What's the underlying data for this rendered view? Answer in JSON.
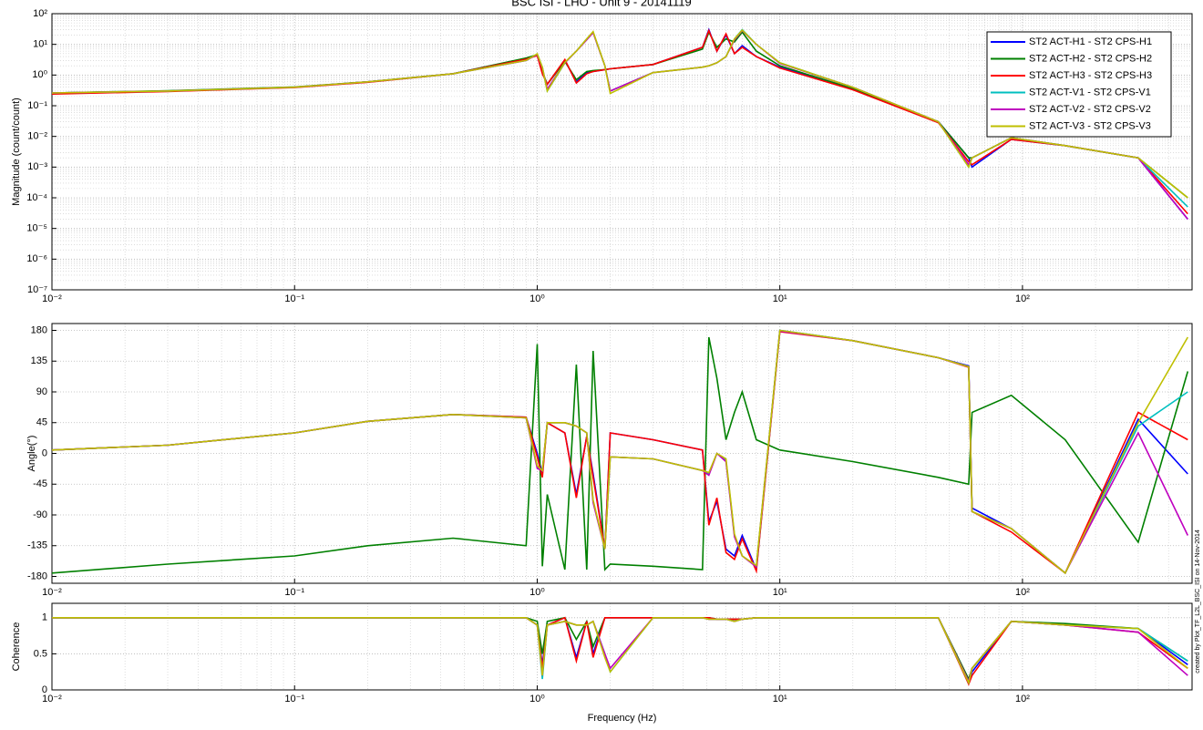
{
  "chart_data": [
    {
      "type": "line",
      "title": "BSC ISI - LHO - Unit 9 - 20141119",
      "ylabel": "Magnitude (count/count)",
      "log_x": true,
      "log_y": true,
      "grid": true,
      "minor_grid": true,
      "legend": "upper right",
      "xlim": [
        0.01,
        500
      ],
      "ylim": [
        1e-07,
        100
      ],
      "xticks": [
        {
          "value": 0.01,
          "label": "10⁻²"
        },
        {
          "value": 0.1,
          "label": "10⁻¹"
        },
        {
          "value": 1,
          "label": "10⁰"
        },
        {
          "value": 10,
          "label": "10¹"
        },
        {
          "value": 100,
          "label": "10²"
        }
      ],
      "yticks": [
        {
          "value": 1e-07,
          "label": "10⁻⁷"
        },
        {
          "value": 1e-06,
          "label": "10⁻⁶"
        },
        {
          "value": 1e-05,
          "label": "10⁻⁵"
        },
        {
          "value": 0.0001,
          "label": "10⁻⁴"
        },
        {
          "value": 0.001,
          "label": "10⁻³"
        },
        {
          "value": 0.01,
          "label": "10⁻²"
        },
        {
          "value": 0.1,
          "label": "10⁻¹"
        },
        {
          "value": 1,
          "label": "10⁰"
        },
        {
          "value": 10,
          "label": "10¹"
        },
        {
          "value": 100,
          "label": "10²"
        }
      ],
      "x": [
        0.01,
        0.03,
        0.1,
        0.2,
        0.45,
        0.9,
        1.0,
        1.05,
        1.1,
        1.3,
        1.45,
        1.6,
        1.7,
        1.9,
        2.0,
        3,
        4.8,
        5.1,
        5.5,
        6,
        6.5,
        7,
        8,
        10,
        20,
        45,
        60,
        62,
        90,
        150,
        300,
        480
      ],
      "series": [
        {
          "name": "ST2 ACT-H1 - ST2 CPS-H1",
          "color": "#0000ff",
          "values": [
            0.25,
            0.3,
            0.4,
            0.6,
            1.1,
            3.5,
            4.5,
            1.2,
            0.5,
            3,
            0.6,
            1.2,
            1.3,
            1.5,
            1.6,
            2.2,
            8,
            30,
            6,
            20,
            5,
            9,
            4,
            1.8,
            0.35,
            0.03,
            0.002,
            0.001,
            0.008,
            0.005,
            0.002,
            2e-05
          ]
        },
        {
          "name": "ST2 ACT-H2 - ST2 CPS-H2",
          "color": "#008000",
          "values": [
            0.26,
            0.31,
            0.41,
            0.6,
            1.1,
            3.6,
            4.6,
            1.3,
            0.5,
            2.8,
            0.7,
            1.3,
            1.4,
            1.5,
            1.6,
            2.2,
            7,
            25,
            8,
            15,
            12,
            25,
            6,
            2,
            0.36,
            0.03,
            0.002,
            0.002,
            0.009,
            0.005,
            0.002,
            0.0001
          ]
        },
        {
          "name": "ST2 ACT-H3 - ST2 CPS-H3",
          "color": "#ff0000",
          "values": [
            0.24,
            0.29,
            0.39,
            0.58,
            1.1,
            3.3,
            4.3,
            1.1,
            0.5,
            3.2,
            0.55,
            1.1,
            1.3,
            1.5,
            1.6,
            2.2,
            8,
            28,
            6,
            22,
            5,
            8,
            4,
            1.7,
            0.33,
            0.028,
            0.0015,
            0.0012,
            0.008,
            0.005,
            0.002,
            3e-05
          ]
        },
        {
          "name": "ST2 ACT-V1 - ST2 CPS-V1",
          "color": "#00bfbf",
          "values": [
            0.26,
            0.3,
            0.4,
            0.6,
            1.1,
            3,
            4.8,
            1.8,
            0.3,
            2.5,
            6,
            15,
            25,
            2,
            0.3,
            1.2,
            1.8,
            2,
            2.5,
            4,
            15,
            30,
            10,
            2.5,
            0.4,
            0.03,
            0.001,
            0.002,
            0.009,
            0.005,
            0.002,
            5e-05
          ]
        },
        {
          "name": "ST2 ACT-V2 - ST2 CPS-V2",
          "color": "#bf00bf",
          "values": [
            0.26,
            0.3,
            0.4,
            0.6,
            1.1,
            3,
            4.7,
            1.7,
            0.35,
            2.5,
            6,
            14,
            24,
            2,
            0.3,
            1.2,
            1.8,
            2,
            2.5,
            4,
            14,
            28,
            10,
            2.4,
            0.4,
            0.03,
            0.0012,
            0.002,
            0.009,
            0.005,
            0.002,
            2e-05
          ]
        },
        {
          "name": "ST2 ACT-V3 - ST2 CPS-V3",
          "color": "#bfbf00",
          "values": [
            0.26,
            0.3,
            0.4,
            0.6,
            1.1,
            3,
            4.9,
            1.8,
            0.3,
            2.6,
            6,
            15,
            26,
            2,
            0.25,
            1.2,
            1.8,
            2,
            2.5,
            4,
            15,
            29,
            10,
            2.5,
            0.4,
            0.03,
            0.001,
            0.002,
            0.009,
            0.005,
            0.002,
            0.0001
          ]
        }
      ]
    },
    {
      "type": "line",
      "ylabel": "Angle(°)",
      "log_x": true,
      "log_y": false,
      "grid": true,
      "minor_grid": true,
      "xlim": [
        0.01,
        500
      ],
      "ylim": [
        -190,
        190
      ],
      "xticks": [
        {
          "value": 0.01,
          "label": "10⁻²"
        },
        {
          "value": 0.1,
          "label": "10⁻¹"
        },
        {
          "value": 1,
          "label": "10⁰"
        },
        {
          "value": 10,
          "label": "10¹"
        },
        {
          "value": 100,
          "label": "10²"
        }
      ],
      "yticks": [
        -180,
        -135,
        -90,
        -45,
        0,
        45,
        90,
        135,
        180
      ],
      "x": [
        0.01,
        0.03,
        0.1,
        0.2,
        0.45,
        0.9,
        1.0,
        1.05,
        1.1,
        1.3,
        1.45,
        1.6,
        1.7,
        1.9,
        2.0,
        3,
        4.8,
        5.1,
        5.5,
        6,
        6.5,
        7,
        8,
        10,
        20,
        45,
        60,
        62,
        90,
        150,
        300,
        480
      ],
      "series": [
        {
          "color": "#0000ff",
          "values": [
            5,
            12,
            30,
            47,
            57,
            53,
            0,
            -30,
            45,
            30,
            -60,
            25,
            -30,
            -140,
            30,
            20,
            5,
            -100,
            -70,
            -140,
            -150,
            -120,
            -170,
            180,
            165,
            140,
            128,
            -80,
            -110,
            -175,
            50,
            -30
          ]
        },
        {
          "color": "#008000",
          "values": [
            -175,
            -162,
            -150,
            -135,
            -124,
            -135,
            160,
            -165,
            -60,
            -170,
            130,
            -170,
            150,
            -170,
            -162,
            -165,
            -170,
            170,
            110,
            20,
            60,
            90,
            20,
            5,
            -12,
            -35,
            -45,
            60,
            85,
            20,
            -130,
            120
          ]
        },
        {
          "color": "#ff0000",
          "values": [
            5,
            12,
            30,
            47,
            57,
            53,
            -5,
            -35,
            45,
            30,
            -65,
            25,
            -35,
            -140,
            30,
            20,
            5,
            -105,
            -65,
            -145,
            -155,
            -125,
            -172,
            178,
            165,
            140,
            126,
            -85,
            -115,
            -175,
            60,
            20
          ]
        },
        {
          "color": "#00bfbf",
          "values": [
            5,
            12,
            30,
            47,
            57,
            52,
            -20,
            -25,
            45,
            45,
            40,
            30,
            -70,
            -140,
            -5,
            -8,
            -25,
            -30,
            0,
            -10,
            -120,
            -150,
            -165,
            180,
            165,
            140,
            127,
            -85,
            -110,
            -175,
            40,
            90
          ]
        },
        {
          "color": "#bf00bf",
          "values": [
            5,
            12,
            30,
            47,
            57,
            52,
            -22,
            -25,
            45,
            45,
            40,
            30,
            -72,
            -140,
            -5,
            -8,
            -25,
            -32,
            0,
            -12,
            -122,
            -150,
            -166,
            179,
            165,
            140,
            127,
            -85,
            -110,
            -175,
            30,
            -120
          ]
        },
        {
          "color": "#bfbf00",
          "values": [
            5,
            12,
            30,
            47,
            57,
            52,
            -18,
            -25,
            45,
            45,
            40,
            30,
            -68,
            -140,
            -5,
            -8,
            -25,
            -28,
            0,
            -8,
            -118,
            -150,
            -164,
            180,
            165,
            140,
            127,
            -85,
            -110,
            -175,
            45,
            170
          ]
        }
      ]
    },
    {
      "type": "line",
      "ylabel": "Coherence",
      "xlabel": "Frequency (Hz)",
      "annotation": "created by Plot_TF_L2L_BSC_ISI on 14-Nov-2014",
      "log_x": true,
      "log_y": false,
      "grid": true,
      "minor_grid": true,
      "xlim": [
        0.01,
        500
      ],
      "ylim": [
        0,
        1.2
      ],
      "xticks": [
        {
          "value": 0.01,
          "label": "10⁻²"
        },
        {
          "value": 0.1,
          "label": "10⁻¹"
        },
        {
          "value": 1,
          "label": "10⁰"
        },
        {
          "value": 10,
          "label": "10¹"
        },
        {
          "value": 100,
          "label": "10²"
        }
      ],
      "yticks": [
        0,
        0.5,
        1
      ],
      "x": [
        0.01,
        0.03,
        0.1,
        0.2,
        0.45,
        0.9,
        1.0,
        1.05,
        1.1,
        1.3,
        1.45,
        1.6,
        1.7,
        1.9,
        2.0,
        3,
        4.8,
        5.1,
        5.5,
        6,
        6.5,
        7,
        8,
        10,
        20,
        45,
        60,
        62,
        90,
        150,
        300,
        480
      ],
      "series": [
        {
          "color": "#0000ff",
          "values": [
            1,
            1,
            1,
            1,
            1,
            1,
            0.9,
            0.35,
            0.9,
            1,
            0.45,
            0.95,
            0.5,
            1,
            1,
            1,
            1,
            1,
            0.98,
            0.98,
            0.98,
            0.98,
            1,
            1,
            1,
            1,
            0.1,
            0.25,
            0.95,
            0.9,
            0.85,
            0.35
          ]
        },
        {
          "color": "#008000",
          "values": [
            1,
            1,
            1,
            1,
            1,
            1,
            0.95,
            0.5,
            0.95,
            1,
            0.7,
            0.95,
            0.6,
            1,
            1,
            1,
            1,
            1,
            0.98,
            0.98,
            0.98,
            0.98,
            1,
            1,
            1,
            1,
            0.15,
            0.3,
            0.95,
            0.92,
            0.85,
            0.4
          ]
        },
        {
          "color": "#ff0000",
          "values": [
            1,
            1,
            1,
            1,
            1,
            1,
            0.9,
            0.3,
            0.9,
            1,
            0.4,
            0.95,
            0.45,
            1,
            1,
            1,
            1,
            1,
            0.98,
            0.98,
            0.98,
            0.98,
            1,
            1,
            1,
            1,
            0.08,
            0.2,
            0.95,
            0.9,
            0.8,
            0.3
          ]
        },
        {
          "color": "#00bfbf",
          "values": [
            1,
            1,
            1,
            1,
            1,
            1,
            0.9,
            0.15,
            0.9,
            0.95,
            0.9,
            0.9,
            0.95,
            0.5,
            0.25,
            1,
            1,
            0.98,
            0.98,
            0.98,
            0.95,
            0.98,
            1,
            1,
            1,
            1,
            0.1,
            0.3,
            0.95,
            0.9,
            0.85,
            0.4
          ]
        },
        {
          "color": "#bf00bf",
          "values": [
            1,
            1,
            1,
            1,
            1,
            1,
            0.9,
            0.2,
            0.9,
            0.95,
            0.9,
            0.9,
            0.95,
            0.5,
            0.3,
            1,
            1,
            0.98,
            0.98,
            0.98,
            0.95,
            0.98,
            1,
            1,
            1,
            1,
            0.12,
            0.3,
            0.95,
            0.9,
            0.8,
            0.2
          ]
        },
        {
          "color": "#bfbf00",
          "values": [
            1,
            1,
            1,
            1,
            1,
            1,
            0.9,
            0.2,
            0.9,
            0.95,
            0.9,
            0.9,
            0.95,
            0.45,
            0.25,
            1,
            1,
            0.98,
            0.98,
            0.98,
            0.95,
            0.98,
            1,
            1,
            1,
            1,
            0.1,
            0.3,
            0.95,
            0.9,
            0.85,
            0.3
          ]
        }
      ]
    }
  ]
}
